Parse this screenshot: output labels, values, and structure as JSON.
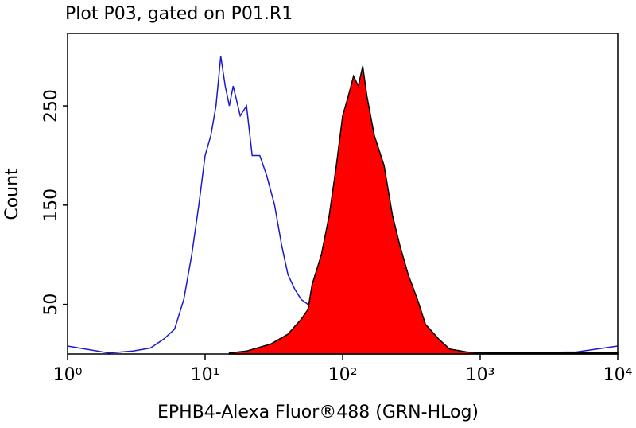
{
  "chart_data": {
    "type": "histogram-overlay",
    "title": "Plot P03, gated on P01.R1",
    "x_label": "EPHB4-Alexa Fluor®488 (GRN-HLog)",
    "y_label": "Count",
    "log_x": true,
    "xlim": [
      1,
      10000
    ],
    "xticks": [
      {
        "value": 1,
        "label": "10⁰"
      },
      {
        "value": 10,
        "label": "10¹"
      },
      {
        "value": 100,
        "label": "10²"
      },
      {
        "value": 1000,
        "label": "10³"
      },
      {
        "value": 10000,
        "label": "10⁴"
      }
    ],
    "ylim": [
      0,
      323
    ],
    "yticks": [
      50,
      150,
      250
    ],
    "series": [
      {
        "color": "#1a1acc",
        "filled": false,
        "x": [
          1,
          2,
          3,
          4,
          5,
          6,
          7,
          8,
          9,
          10,
          11,
          12,
          13,
          14,
          15,
          16,
          18,
          20,
          22,
          25,
          28,
          32,
          36,
          40,
          45,
          50,
          56,
          63,
          70,
          80,
          90,
          100,
          120,
          150,
          200,
          500,
          1000,
          5000,
          10000
        ],
        "values": [
          8,
          1,
          3,
          6,
          15,
          25,
          55,
          100,
          150,
          200,
          220,
          250,
          300,
          270,
          250,
          270,
          240,
          250,
          200,
          200,
          180,
          150,
          110,
          80,
          65,
          55,
          50,
          35,
          25,
          15,
          10,
          8,
          3,
          2,
          1,
          1,
          1,
          2,
          8
        ]
      },
      {
        "color": "#ff0000",
        "filled": true,
        "x": [
          15,
          20,
          30,
          40,
          50,
          56,
          60,
          70,
          80,
          90,
          100,
          110,
          120,
          130,
          140,
          150,
          170,
          200,
          230,
          260,
          300,
          350,
          400,
          500,
          600,
          800,
          1000,
          10000
        ],
        "values": [
          1,
          3,
          10,
          20,
          35,
          45,
          70,
          100,
          140,
          190,
          240,
          260,
          280,
          270,
          290,
          260,
          220,
          190,
          140,
          110,
          80,
          55,
          30,
          15,
          5,
          2,
          1,
          1
        ]
      }
    ]
  }
}
